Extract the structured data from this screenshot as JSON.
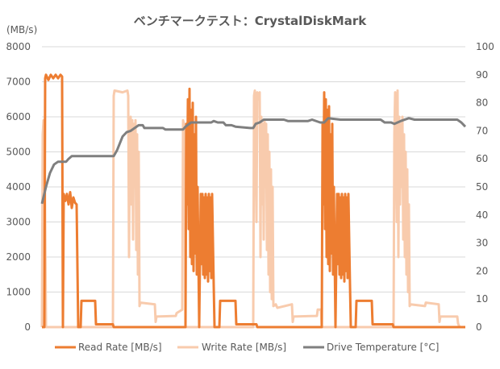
{
  "chart_data": {
    "type": "line",
    "title": "ベンチマークテスト：CrystalDiskMark",
    "ylabel": "(MB/s)",
    "xlabel": "",
    "xlim": [
      0,
      525
    ],
    "ylim": [
      0,
      8000
    ],
    "y2lim": [
      0,
      100
    ],
    "yticks": [
      "0",
      "1000",
      "2000",
      "3000",
      "4000",
      "5000",
      "6000",
      "7000",
      "8000"
    ],
    "y2ticks": [
      "0",
      "10",
      "20",
      "30",
      "40",
      "50",
      "60",
      "70",
      "80",
      "90",
      "100"
    ],
    "grid": true,
    "legend_position": "bottom",
    "series": [
      {
        "name": "Read Rate [MB/s]",
        "axis": "left",
        "color": "#ED7D31",
        "points": [
          [
            0,
            0
          ],
          [
            3,
            0
          ],
          [
            4,
            7100
          ],
          [
            5,
            7200
          ],
          [
            8,
            7050
          ],
          [
            11,
            7200
          ],
          [
            14,
            7100
          ],
          [
            17,
            7200
          ],
          [
            20,
            7100
          ],
          [
            23,
            7200
          ],
          [
            25,
            7150
          ],
          [
            26,
            0
          ],
          [
            27,
            3800
          ],
          [
            29,
            3600
          ],
          [
            31,
            3800
          ],
          [
            33,
            3500
          ],
          [
            35,
            3850
          ],
          [
            37,
            3400
          ],
          [
            39,
            3700
          ],
          [
            41,
            3550
          ],
          [
            43,
            3500
          ],
          [
            45,
            0
          ],
          [
            48,
            0
          ],
          [
            49,
            750
          ],
          [
            66,
            750
          ],
          [
            67,
            80
          ],
          [
            88,
            80
          ],
          [
            89,
            0
          ],
          [
            178,
            0
          ],
          [
            179,
            5800
          ],
          [
            180,
            3500
          ],
          [
            181,
            6500
          ],
          [
            182,
            2800
          ],
          [
            183,
            6800
          ],
          [
            184,
            2000
          ],
          [
            185,
            6200
          ],
          [
            186,
            1800
          ],
          [
            187,
            6400
          ],
          [
            188,
            1600
          ],
          [
            189,
            5500
          ],
          [
            190,
            2100
          ],
          [
            191,
            6000
          ],
          [
            192,
            1500
          ],
          [
            193,
            4000
          ],
          [
            195,
            0
          ],
          [
            197,
            3800
          ],
          [
            198,
            1800
          ],
          [
            199,
            3800
          ],
          [
            200,
            1500
          ],
          [
            201,
            3700
          ],
          [
            202,
            1400
          ],
          [
            203,
            3800
          ],
          [
            204,
            1500
          ],
          [
            205,
            3700
          ],
          [
            206,
            1300
          ],
          [
            207,
            3800
          ],
          [
            208,
            1600
          ],
          [
            209,
            3700
          ],
          [
            210,
            1400
          ],
          [
            211,
            3800
          ],
          [
            213,
            1200
          ],
          [
            214,
            0
          ],
          [
            220,
            0
          ],
          [
            221,
            750
          ],
          [
            240,
            750
          ],
          [
            241,
            80
          ],
          [
            266,
            80
          ],
          [
            267,
            0
          ],
          [
            347,
            0
          ],
          [
            348,
            5800
          ],
          [
            349,
            3500
          ],
          [
            350,
            6700
          ],
          [
            351,
            2800
          ],
          [
            352,
            6500
          ],
          [
            353,
            2000
          ],
          [
            354,
            6200
          ],
          [
            355,
            1800
          ],
          [
            356,
            6300
          ],
          [
            357,
            1600
          ],
          [
            358,
            5500
          ],
          [
            359,
            2100
          ],
          [
            360,
            5800
          ],
          [
            361,
            1500
          ],
          [
            362,
            4000
          ],
          [
            364,
            0
          ],
          [
            366,
            3800
          ],
          [
            367,
            1800
          ],
          [
            368,
            3800
          ],
          [
            369,
            1500
          ],
          [
            370,
            3700
          ],
          [
            371,
            1400
          ],
          [
            372,
            3800
          ],
          [
            373,
            1500
          ],
          [
            374,
            3700
          ],
          [
            375,
            1300
          ],
          [
            376,
            3800
          ],
          [
            377,
            1600
          ],
          [
            378,
            3700
          ],
          [
            379,
            1400
          ],
          [
            380,
            3800
          ],
          [
            382,
            1200
          ],
          [
            383,
            0
          ],
          [
            389,
            0
          ],
          [
            390,
            750
          ],
          [
            409,
            750
          ],
          [
            410,
            80
          ],
          [
            435,
            80
          ],
          [
            436,
            0
          ],
          [
            525,
            0
          ]
        ]
      },
      {
        "name": "Write Rate [MB/s]",
        "axis": "left",
        "color": "#F8CBAD",
        "points": [
          [
            0,
            0
          ],
          [
            1,
            5500
          ],
          [
            2,
            5900
          ],
          [
            3,
            5800
          ],
          [
            4,
            3000
          ],
          [
            5,
            0
          ],
          [
            88,
            0
          ],
          [
            89,
            6600
          ],
          [
            90,
            6750
          ],
          [
            100,
            6700
          ],
          [
            106,
            6750
          ],
          [
            107,
            6600
          ],
          [
            108,
            2000
          ],
          [
            109,
            5800
          ],
          [
            110,
            6000
          ],
          [
            111,
            3500
          ],
          [
            112,
            5900
          ],
          [
            113,
            2500
          ],
          [
            114,
            5800
          ],
          [
            115,
            4000
          ],
          [
            116,
            5900
          ],
          [
            117,
            2200
          ],
          [
            118,
            5500
          ],
          [
            119,
            1500
          ],
          [
            120,
            5000
          ],
          [
            121,
            600
          ],
          [
            122,
            700
          ],
          [
            140,
            650
          ],
          [
            141,
            150
          ],
          [
            142,
            300
          ],
          [
            166,
            320
          ],
          [
            167,
            400
          ],
          [
            174,
            500
          ],
          [
            175,
            5900
          ],
          [
            177,
            5700
          ],
          [
            178,
            0
          ],
          [
            262,
            0
          ],
          [
            263,
            6600
          ],
          [
            264,
            6750
          ],
          [
            266,
            3000
          ],
          [
            267,
            6700
          ],
          [
            269,
            6500
          ],
          [
            270,
            6700
          ],
          [
            271,
            2000
          ],
          [
            272,
            6000
          ],
          [
            273,
            3500
          ],
          [
            274,
            5800
          ],
          [
            275,
            2500
          ],
          [
            276,
            5900
          ],
          [
            277,
            4000
          ],
          [
            278,
            5800
          ],
          [
            279,
            2200
          ],
          [
            280,
            5500
          ],
          [
            281,
            1500
          ],
          [
            282,
            5000
          ],
          [
            283,
            1000
          ],
          [
            284,
            4500
          ],
          [
            285,
            800
          ],
          [
            286,
            4000
          ],
          [
            287,
            600
          ],
          [
            290,
            650
          ],
          [
            292,
            550
          ],
          [
            310,
            650
          ],
          [
            311,
            150
          ],
          [
            312,
            300
          ],
          [
            341,
            320
          ],
          [
            342,
            500
          ],
          [
            346,
            500
          ],
          [
            347,
            0
          ],
          [
            436,
            0
          ],
          [
            437,
            5500
          ],
          [
            438,
            6700
          ],
          [
            440,
            3000
          ],
          [
            441,
            6750
          ],
          [
            442,
            2000
          ],
          [
            443,
            6000
          ],
          [
            444,
            3500
          ],
          [
            445,
            5800
          ],
          [
            446,
            4000
          ],
          [
            447,
            6000
          ],
          [
            448,
            2500
          ],
          [
            449,
            5500
          ],
          [
            450,
            2000
          ],
          [
            451,
            5000
          ],
          [
            452,
            1500
          ],
          [
            453,
            4500
          ],
          [
            454,
            1000
          ],
          [
            455,
            3500
          ],
          [
            456,
            600
          ],
          [
            457,
            650
          ],
          [
            475,
            600
          ],
          [
            476,
            700
          ],
          [
            492,
            650
          ],
          [
            493,
            150
          ],
          [
            494,
            300
          ],
          [
            515,
            300
          ],
          [
            516,
            100
          ],
          [
            518,
            0
          ],
          [
            525,
            0
          ]
        ]
      },
      {
        "name": "Drive Temperature [°C]",
        "axis": "right",
        "color": "#7F7F7F",
        "points": [
          [
            0,
            44
          ],
          [
            5,
            50
          ],
          [
            10,
            55
          ],
          [
            15,
            58
          ],
          [
            20,
            59
          ],
          [
            30,
            59
          ],
          [
            33,
            60
          ],
          [
            37,
            61
          ],
          [
            89,
            61
          ],
          [
            93,
            63
          ],
          [
            100,
            68
          ],
          [
            105,
            69.5
          ],
          [
            110,
            70
          ],
          [
            115,
            71
          ],
          [
            120,
            72
          ],
          [
            125,
            72
          ],
          [
            127,
            71
          ],
          [
            150,
            71
          ],
          [
            153,
            70.5
          ],
          [
            175,
            70.5
          ],
          [
            178,
            71.5
          ],
          [
            185,
            73
          ],
          [
            210,
            73
          ],
          [
            213,
            73.5
          ],
          [
            218,
            73
          ],
          [
            225,
            73
          ],
          [
            228,
            72
          ],
          [
            235,
            72
          ],
          [
            240,
            71.5
          ],
          [
            258,
            71
          ],
          [
            262,
            71
          ],
          [
            265,
            72.5
          ],
          [
            270,
            73
          ],
          [
            275,
            74
          ],
          [
            300,
            74
          ],
          [
            305,
            73.5
          ],
          [
            330,
            73.5
          ],
          [
            335,
            74
          ],
          [
            345,
            73
          ],
          [
            350,
            73
          ],
          [
            355,
            74.5
          ],
          [
            370,
            74
          ],
          [
            420,
            74
          ],
          [
            425,
            73
          ],
          [
            433,
            73
          ],
          [
            437,
            72.5
          ],
          [
            445,
            73.5
          ],
          [
            455,
            74.5
          ],
          [
            462,
            74
          ],
          [
            515,
            74
          ],
          [
            520,
            73
          ],
          [
            525,
            71.5
          ]
        ]
      }
    ]
  }
}
